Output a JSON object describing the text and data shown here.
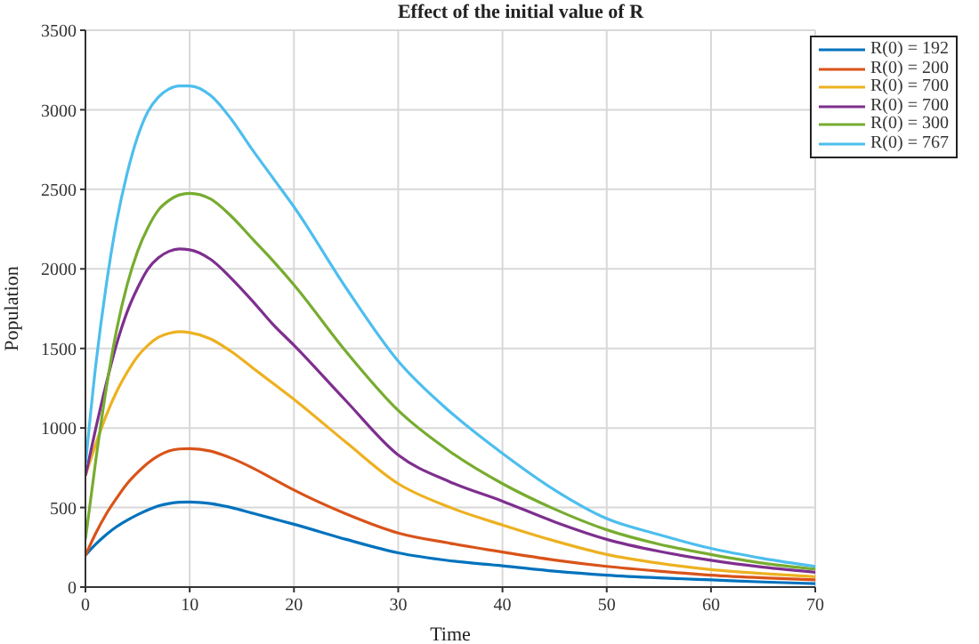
{
  "chart_data": {
    "type": "line",
    "title": "Effect of the initial value of R",
    "xlabel": "Time",
    "ylabel": "Population",
    "x": [
      0,
      1,
      2,
      3,
      4,
      5,
      6,
      7,
      8,
      9,
      10,
      12,
      14,
      16,
      18,
      20,
      25,
      30,
      35,
      40,
      45,
      50,
      55,
      60,
      65,
      70
    ],
    "xlim": [
      0,
      70
    ],
    "xticks": [
      0,
      10,
      20,
      30,
      40,
      50,
      60,
      70
    ],
    "ylim": [
      0,
      3500
    ],
    "yticks": [
      0,
      500,
      1000,
      1500,
      2000,
      2500,
      3000,
      3500
    ],
    "grid": true,
    "legend": "top right",
    "marker": "none",
    "line_style": "solid",
    "series": [
      {
        "name": "R(0) = 192",
        "color": "#0072bd",
        "values": [
          200,
          270,
          330,
          380,
          420,
          455,
          485,
          510,
          525,
          533,
          535,
          525,
          500,
          465,
          430,
          395,
          300,
          215,
          165,
          134,
          100,
          75,
          58,
          45,
          32,
          22
        ]
      },
      {
        "name": "R(0) = 200",
        "color": "#d95319",
        "values": [
          200,
          340,
          460,
          560,
          650,
          720,
          780,
          825,
          855,
          868,
          870,
          855,
          810,
          750,
          680,
          610,
          460,
          340,
          275,
          220,
          170,
          130,
          100,
          75,
          58,
          45
        ]
      },
      {
        "name": "R(0) = 700",
        "color": "#edb120",
        "values": [
          700,
          900,
          1080,
          1230,
          1350,
          1450,
          1520,
          1570,
          1595,
          1605,
          1600,
          1560,
          1480,
          1380,
          1280,
          1180,
          910,
          650,
          500,
          390,
          290,
          205,
          150,
          110,
          85,
          65
        ]
      },
      {
        "name": "R(0) = 700",
        "color": "#7e2f8e",
        "values": [
          700,
          1000,
          1280,
          1530,
          1730,
          1880,
          2000,
          2070,
          2110,
          2125,
          2120,
          2060,
          1940,
          1800,
          1650,
          1520,
          1170,
          830,
          660,
          540,
          410,
          300,
          225,
          168,
          125,
          93
        ]
      },
      {
        "name": "R(0) = 300",
        "color": "#77ac30",
        "values": [
          300,
          800,
          1250,
          1620,
          1900,
          2110,
          2260,
          2370,
          2430,
          2465,
          2475,
          2440,
          2330,
          2190,
          2050,
          1900,
          1480,
          1110,
          850,
          650,
          490,
          360,
          270,
          205,
          150,
          112
        ]
      },
      {
        "name": "R(0) = 767",
        "color": "#4dbeee",
        "values": [
          767,
          1400,
          1900,
          2300,
          2600,
          2830,
          2990,
          3080,
          3130,
          3150,
          3150,
          3090,
          2940,
          2750,
          2570,
          2390,
          1880,
          1420,
          1100,
          840,
          610,
          430,
          330,
          243,
          180,
          130
        ]
      }
    ]
  }
}
